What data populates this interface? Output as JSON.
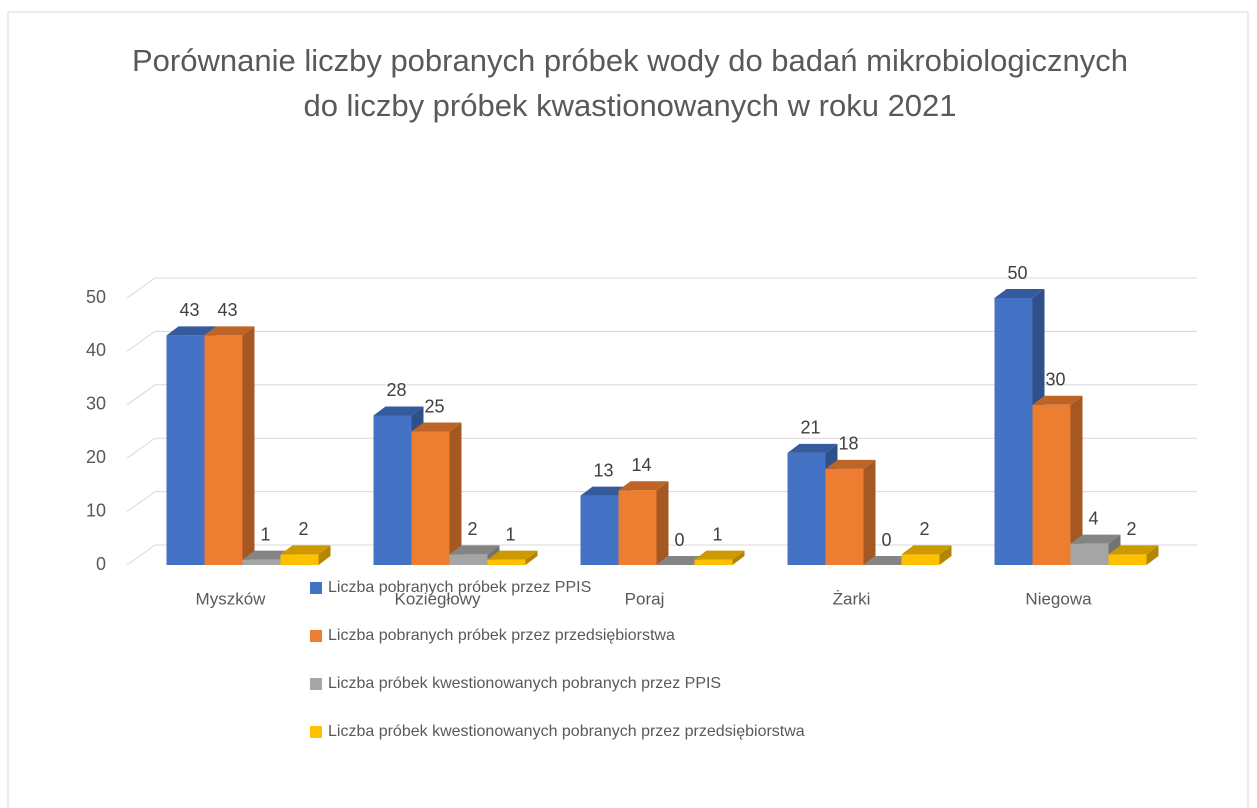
{
  "chart_data": {
    "type": "bar3d",
    "title": "Porównanie liczby pobranych próbek wody do badań mikrobiologicznych do liczby próbek kwastionowanych w roku 2021",
    "categories": [
      "Myszków",
      "Koziegłowy",
      "Poraj",
      "Żarki",
      "Niegowa"
    ],
    "series": [
      {
        "name": "Liczba pobranych próbek przez PPIS",
        "color": "#4472c4",
        "values": [
          43,
          28,
          13,
          21,
          50
        ]
      },
      {
        "name": "Liczba pobranych próbek przez przedsiębiorstwa",
        "color": "#ed7d31",
        "values": [
          43,
          25,
          14,
          18,
          30
        ]
      },
      {
        "name": "Liczba próbek kwestionowanych pobranych przez PPIS",
        "color": "#a5a5a5",
        "values": [
          1,
          2,
          0,
          0,
          4
        ]
      },
      {
        "name": "Liczba próbek kwestionowanych pobranych przez przedsiębiorstwa",
        "color": "#ffc000",
        "values": [
          2,
          1,
          1,
          2,
          2
        ]
      }
    ],
    "ylim": [
      0,
      50
    ],
    "yticks": [
      0,
      10,
      20,
      30,
      40,
      50
    ],
    "grid": true,
    "legend": "bottom"
  }
}
